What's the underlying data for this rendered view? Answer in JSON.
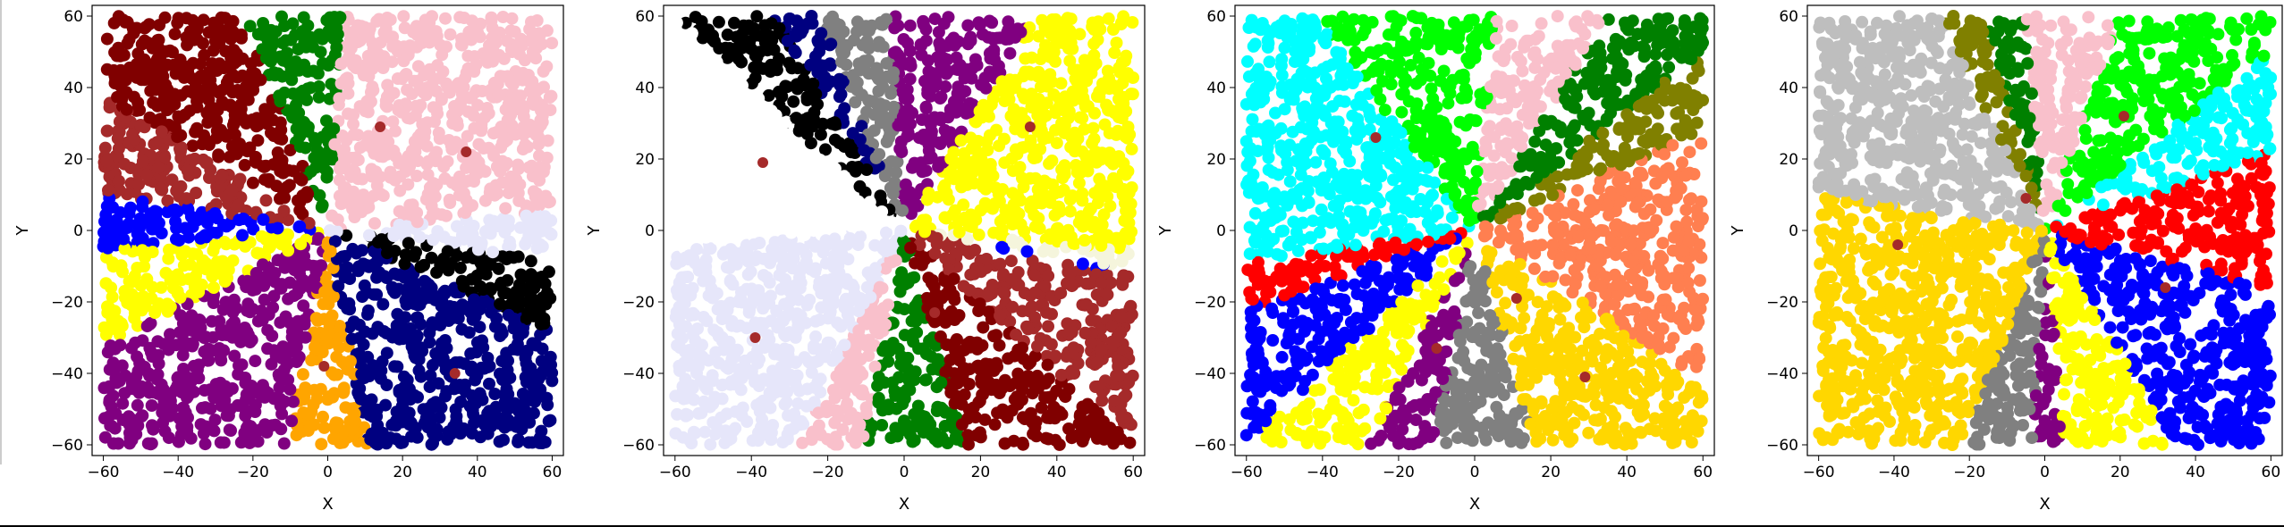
{
  "chart_data": [
    {
      "type": "scatter",
      "xlabel": "X",
      "ylabel": "Y",
      "xlim": [
        -63,
        63
      ],
      "ylim": [
        -63,
        63
      ],
      "xticks": [
        -60,
        -40,
        -20,
        0,
        20,
        40,
        60
      ],
      "yticks": [
        -60,
        -40,
        -20,
        0,
        20,
        40,
        60
      ],
      "region_colors": [
        "#f9c0cb",
        "#e6e6fa",
        "#000000",
        "#000080",
        "#ffa500",
        "#800080",
        "#ffff00",
        "#0000ff",
        "#a52a2a",
        "#800000",
        "#008000"
      ],
      "region_boundary_angles_deg": [
        86,
        5,
        -8,
        -25,
        -80,
        -100,
        -152,
        -175,
        170,
        148,
        110
      ],
      "centroids": [
        [
          37,
          22
        ],
        [
          14,
          29
        ],
        [
          -1,
          -38
        ],
        [
          34,
          -40
        ]
      ]
    },
    {
      "type": "scatter",
      "xlabel": "X",
      "ylabel": "Y",
      "xlim": [
        -63,
        63
      ],
      "ylim": [
        -63,
        63
      ],
      "xticks": [
        -60,
        -40,
        -20,
        0,
        20,
        40,
        60
      ],
      "yticks": [
        -60,
        -40,
        -20,
        0,
        20,
        40,
        60
      ],
      "region_colors": [
        "#ffff00",
        "#f5f5dc",
        "#0000ff",
        "#a52a2a",
        "#800000",
        "#008000",
        "#f9c0cb",
        "#e6e6fa",
        "#ffffff",
        "#000000",
        "#000080",
        "#808080",
        "#800080"
      ],
      "region_boundary_angles_deg": [
        60,
        -5,
        -10,
        -12,
        -45,
        -75,
        -100,
        -115,
        -175,
        135,
        120,
        110,
        93
      ],
      "centroids": [
        [
          33,
          29
        ],
        [
          -37,
          19
        ],
        [
          -39,
          -30
        ],
        [
          8,
          -23
        ]
      ]
    },
    {
      "type": "scatter",
      "xlabel": "X",
      "ylabel": "Y",
      "xlim": [
        -63,
        63
      ],
      "ylim": [
        -63,
        63
      ],
      "xticks": [
        -60,
        -40,
        -20,
        0,
        20,
        40,
        60
      ],
      "yticks": [
        -60,
        -40,
        -20,
        0,
        20,
        40,
        60
      ],
      "region_colors": [
        "#f9c0cb",
        "#008000",
        "#808000",
        "#ff7f50",
        "#ffd700",
        "#808080",
        "#800080",
        "#ffff00",
        "#0000ff",
        "#ff0000",
        "#00ffff",
        "#00ff00"
      ],
      "region_boundary_angles_deg": [
        85,
        60,
        40,
        25,
        -35,
        -75,
        -100,
        -115,
        -135,
        -160,
        -172,
        125
      ],
      "centroids": [
        [
          -26,
          26
        ],
        [
          11,
          -19
        ],
        [
          -10,
          -33
        ],
        [
          29,
          -41
        ]
      ]
    },
    {
      "type": "scatter",
      "xlabel": "X",
      "ylabel": "Y",
      "xlim": [
        -63,
        63
      ],
      "ylim": [
        -63,
        63
      ],
      "xticks": [
        -60,
        -40,
        -20,
        0,
        20,
        40,
        60
      ],
      "yticks": [
        -60,
        -40,
        -20,
        0,
        20,
        40,
        60
      ],
      "region_colors": [
        "#00ff00",
        "#00ffff",
        "#ff0000",
        "#0000ff",
        "#ffff00",
        "#800080",
        "#808080",
        "#ffd700",
        "#bebebe",
        "#808000",
        "#008000",
        "#f9c0cb"
      ],
      "region_boundary_angles_deg": [
        72,
        40,
        20,
        -15,
        -60,
        -85,
        -93,
        -110,
        170,
        115,
        105,
        95
      ],
      "centroids": [
        [
          21,
          32
        ],
        [
          -39,
          -4
        ],
        [
          32,
          -16
        ],
        [
          -5,
          9
        ]
      ]
    }
  ]
}
